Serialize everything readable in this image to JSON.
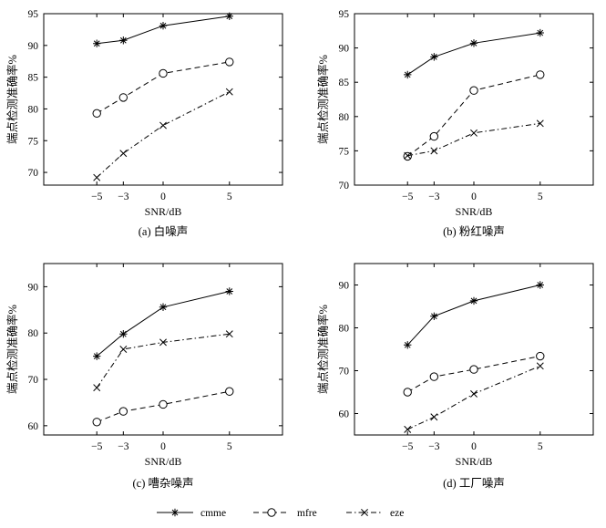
{
  "chart_data": [
    {
      "type": "line",
      "caption": "(a) 白噪声",
      "xlabel": "SNR/dB",
      "ylabel": "端点检测准确率%",
      "xlim": [
        -9,
        9
      ],
      "ylim": [
        68,
        95
      ],
      "xticks": [
        -5,
        -3,
        0,
        5
      ],
      "yticks": [
        70,
        75,
        80,
        85,
        90,
        95
      ],
      "x": [
        -5,
        -3,
        0,
        5
      ],
      "series": [
        {
          "name": "cmme",
          "values": [
            90.3,
            90.8,
            93.1,
            94.6
          ]
        },
        {
          "name": "mfre",
          "values": [
            79.3,
            81.8,
            85.6,
            87.4
          ]
        },
        {
          "name": "eze",
          "values": [
            69.2,
            73.0,
            77.4,
            82.7
          ]
        }
      ],
      "grid": false
    },
    {
      "type": "line",
      "caption": "(b) 粉红噪声",
      "xlabel": "SNR/dB",
      "ylabel": "端点检测准确率%",
      "xlim": [
        -9,
        9
      ],
      "ylim": [
        70,
        95
      ],
      "xticks": [
        -5,
        -3,
        0,
        5
      ],
      "yticks": [
        70,
        75,
        80,
        85,
        90,
        95
      ],
      "x": [
        -5,
        -3,
        0,
        5
      ],
      "series": [
        {
          "name": "cmme",
          "values": [
            86.1,
            88.7,
            90.7,
            92.2
          ]
        },
        {
          "name": "mfre",
          "values": [
            74.2,
            77.1,
            83.8,
            86.1
          ]
        },
        {
          "name": "eze",
          "values": [
            74.3,
            75.0,
            77.6,
            79.0
          ]
        }
      ],
      "grid": false
    },
    {
      "type": "line",
      "caption": "(c) 嘈杂噪声",
      "xlabel": "SNR/dB",
      "ylabel": "端点检测准确率%",
      "xlim": [
        -9,
        9
      ],
      "ylim": [
        58,
        95
      ],
      "xticks": [
        -5,
        -3,
        0,
        5
      ],
      "yticks": [
        60,
        70,
        80,
        90
      ],
      "x": [
        -5,
        -3,
        0,
        5
      ],
      "series": [
        {
          "name": "cmme",
          "values": [
            75.0,
            79.8,
            85.6,
            89.0
          ]
        },
        {
          "name": "mfre",
          "values": [
            60.8,
            63.1,
            64.6,
            67.4
          ]
        },
        {
          "name": "eze",
          "values": [
            68.2,
            76.5,
            78.0,
            79.8
          ]
        }
      ],
      "grid": false
    },
    {
      "type": "line",
      "caption": "(d) 工厂噪声",
      "xlabel": "SNR/dB",
      "ylabel": "端点检测准确率%",
      "xlim": [
        -9,
        9
      ],
      "ylim": [
        55,
        95
      ],
      "xticks": [
        -5,
        -3,
        0,
        5
      ],
      "yticks": [
        60,
        70,
        80,
        90
      ],
      "x": [
        -5,
        -3,
        0,
        5
      ],
      "series": [
        {
          "name": "cmme",
          "values": [
            76.0,
            82.7,
            86.3,
            90.0
          ]
        },
        {
          "name": "mfre",
          "values": [
            65.0,
            68.6,
            70.3,
            73.4
          ]
        },
        {
          "name": "eze",
          "values": [
            56.3,
            59.2,
            64.6,
            71.1
          ]
        }
      ],
      "grid": false
    }
  ],
  "legend": {
    "placement": "bottom",
    "entries": [
      {
        "name": "cmme",
        "marker": "asterisk",
        "line": "solid"
      },
      {
        "name": "mfre",
        "marker": "circle",
        "line": "dashed"
      },
      {
        "name": "eze",
        "marker": "x",
        "line": "dash-dot"
      }
    ]
  }
}
